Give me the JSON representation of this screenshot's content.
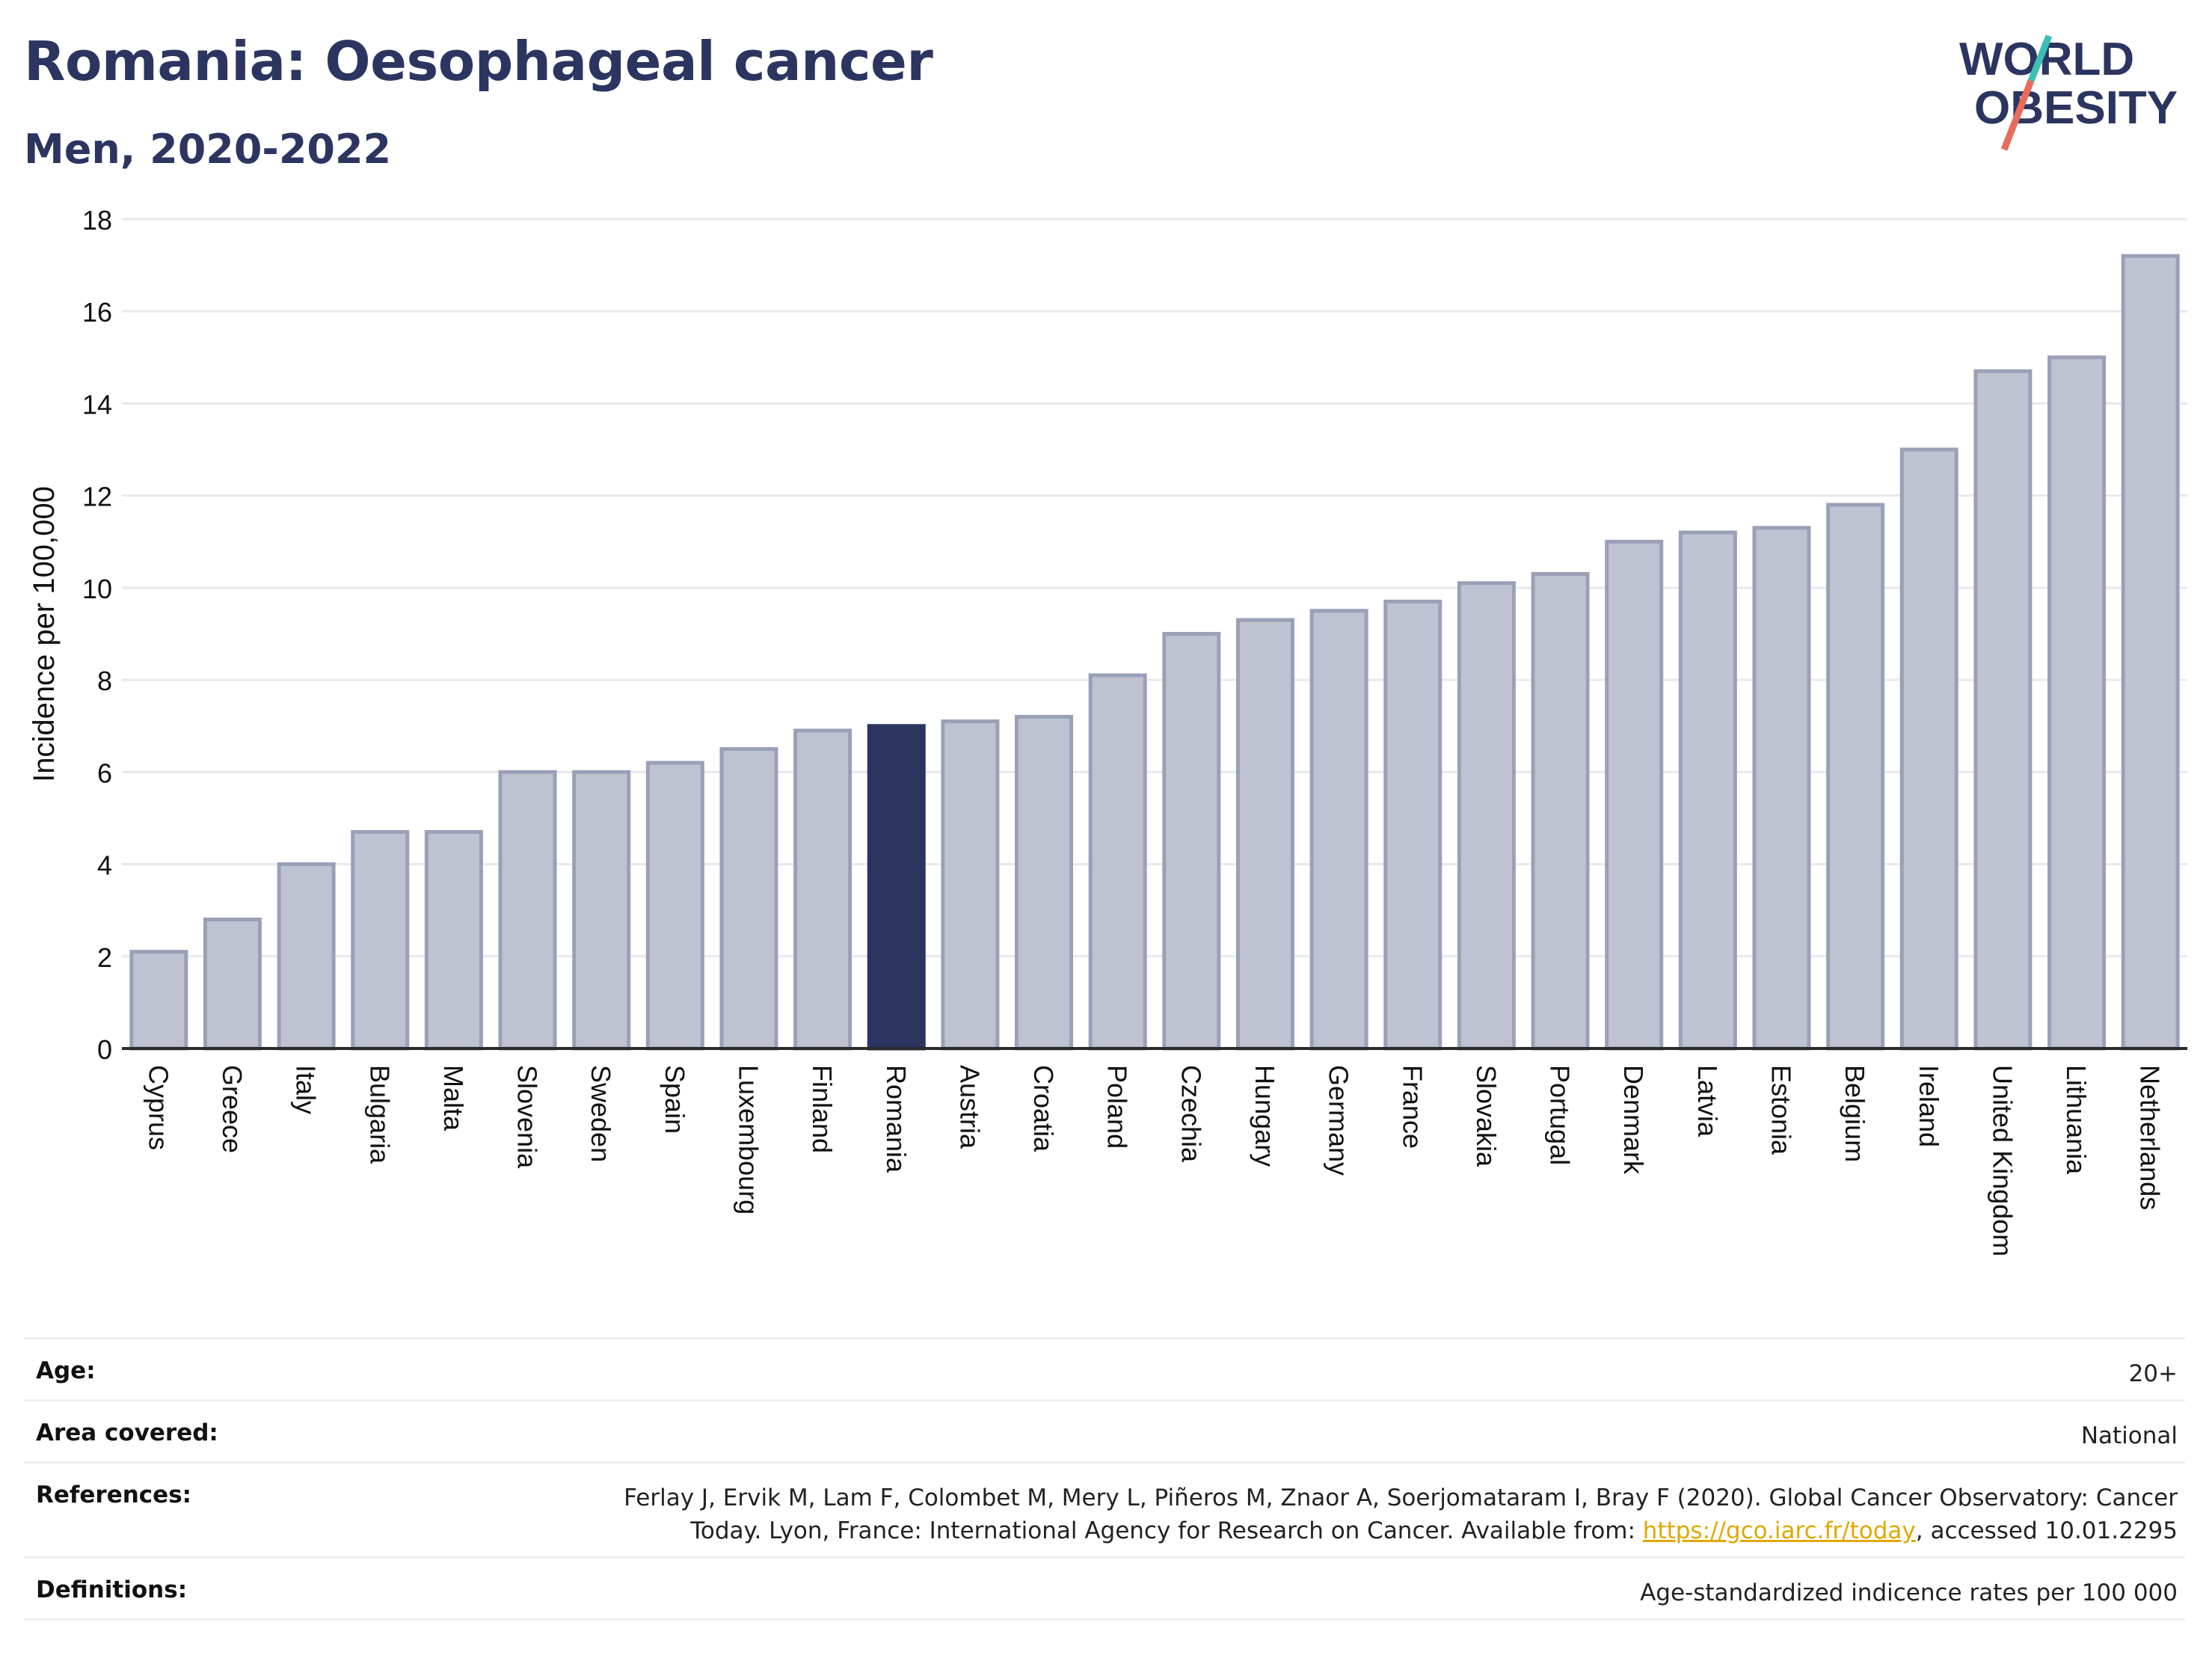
{
  "header": {
    "title": "Romania: Oesophageal cancer",
    "subtitle": "Men, 2020-2022"
  },
  "logo": {
    "line1": "WORLD",
    "line2": "OBESITY"
  },
  "colors": {
    "bar": "#bfc3d1",
    "bar_border": "#9aa0b8",
    "highlight": "#2b3560",
    "title": "#2b3560",
    "logo_slash_teal": "#3cbfb4",
    "logo_slash_red": "#e86b5c",
    "link": "#e0a800"
  },
  "chart_data": {
    "type": "bar",
    "title": "Romania: Oesophageal cancer",
    "subtitle": "Men, 2020-2022",
    "xlabel": "",
    "ylabel": "Incidence per 100,000",
    "ylim": [
      0,
      18
    ],
    "yticks": [
      0,
      2,
      4,
      6,
      8,
      10,
      12,
      14,
      16,
      18
    ],
    "grid": true,
    "highlight": "Romania",
    "categories": [
      "Cyprus",
      "Greece",
      "Italy",
      "Bulgaria",
      "Malta",
      "Slovenia",
      "Sweden",
      "Spain",
      "Luxembourg",
      "Finland",
      "Romania",
      "Austria",
      "Croatia",
      "Poland",
      "Czechia",
      "Hungary",
      "Germany",
      "France",
      "Slovakia",
      "Portugal",
      "Denmark",
      "Latvia",
      "Estonia",
      "Belgium",
      "Ireland",
      "United Kingdom",
      "Lithuania",
      "Netherlands"
    ],
    "values": [
      2.1,
      2.8,
      4.0,
      4.7,
      4.7,
      6.0,
      6.0,
      6.2,
      6.5,
      6.9,
      7.0,
      7.1,
      7.2,
      8.1,
      9.0,
      9.3,
      9.5,
      9.7,
      10.1,
      10.3,
      11.0,
      11.2,
      11.3,
      11.8,
      13.0,
      14.7,
      15.0,
      17.2
    ]
  },
  "meta": {
    "age_label": "Age:",
    "age_value": "20+",
    "area_label": "Area covered:",
    "area_value": "National",
    "references_label": "References:",
    "references_line1": "Ferlay J, Ervik M, Lam F, Colombet M, Mery L, Piñeros M, Znaor A, Soerjomataram I, Bray F (2020). Global Cancer Observatory: Cancer",
    "references_line2_prefix": "Today. Lyon, France: International Agency for Research on Cancer. Available from: ",
    "references_link": "https://gco.iarc.fr/today",
    "references_line2_suffix": ", accessed 10.01.2295",
    "definitions_label": "Definitions:",
    "definitions_value": "Age-standardized indicence rates per 100 000"
  }
}
